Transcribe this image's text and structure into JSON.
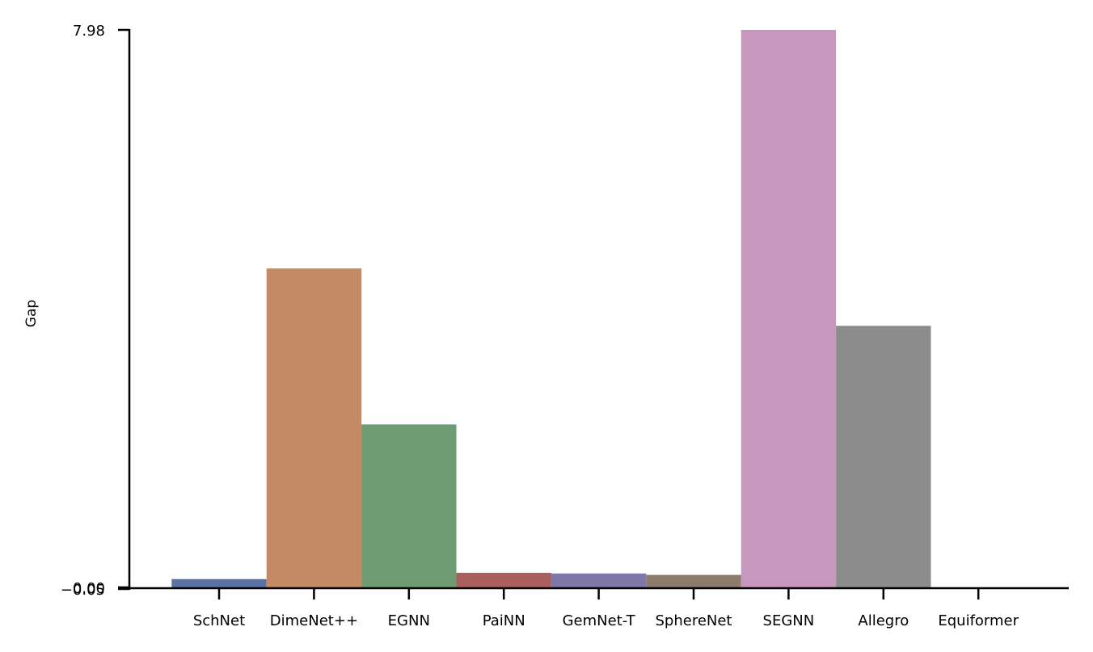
{
  "chart_data": {
    "type": "bar",
    "title": "",
    "xlabel": "",
    "ylabel": "Gap",
    "categories": [
      "SchNet",
      "DimeNet++",
      "EGNN",
      "PaiNN",
      "GemNet-T",
      "SphereNet",
      "SEGNN",
      "Allegro",
      "Equiformer"
    ],
    "values": [
      0.13,
      4.57,
      2.34,
      0.22,
      0.21,
      0.19,
      7.98,
      3.75,
      0.0
    ],
    "colors": [
      "#5b73a3",
      "#c28b66",
      "#6c9c70",
      "#aa5e5e",
      "#8077a8",
      "#8c7b6b",
      "#c897bf",
      "#8c8c8c",
      "#d0c48a"
    ],
    "ylim": [
      -0.05,
      7.98
    ],
    "yticks": [
      7.98,
      0.0,
      -0.05
    ],
    "ytick_labels": [
      "7.98",
      "0.00",
      "−0.05"
    ],
    "grid": false,
    "legend": "none"
  }
}
